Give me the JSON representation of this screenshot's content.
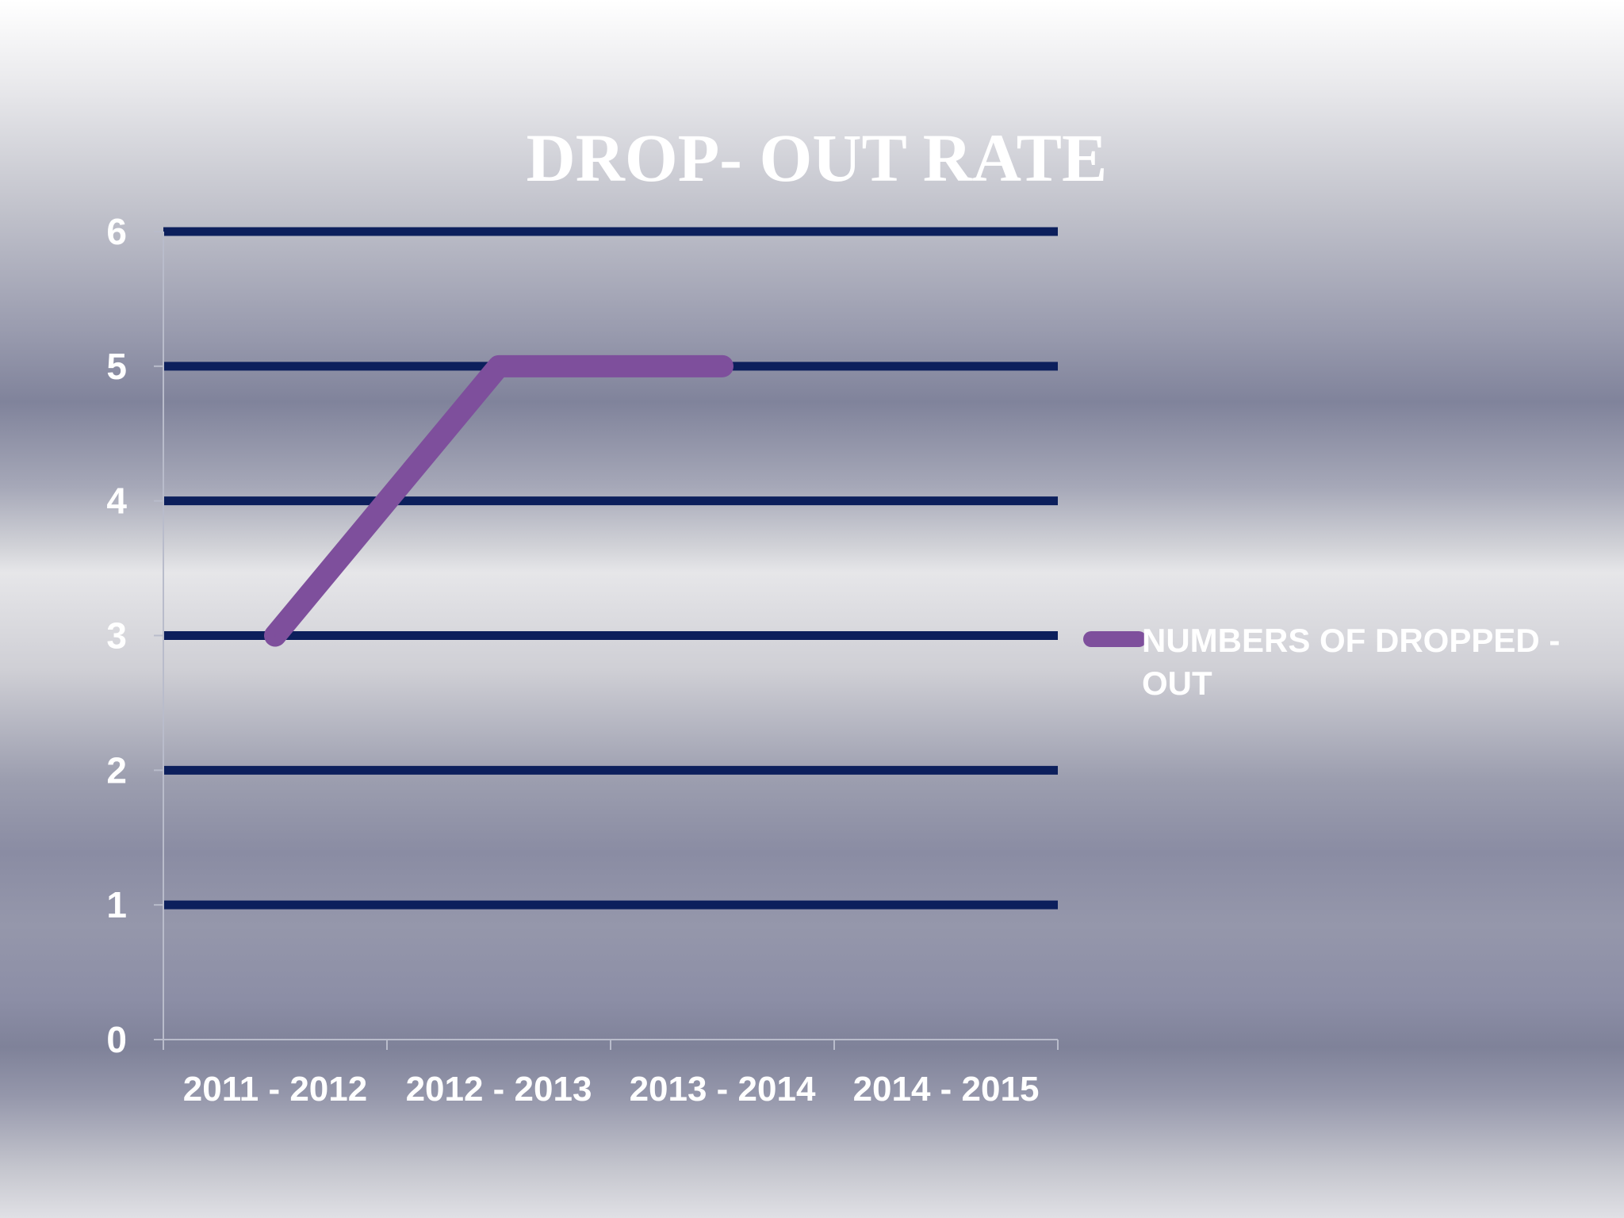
{
  "chart_data": {
    "type": "line",
    "title": "DROP- OUT RATE",
    "categories": [
      "2011 - 2012",
      "2012 - 2013",
      "2013 - 2014",
      "2014 - 2015"
    ],
    "series": [
      {
        "name": "NUMBERS OF DROPPED - OUT",
        "values": [
          3,
          5,
          5,
          null
        ],
        "color": "#7e4f9c"
      }
    ],
    "ylim": [
      0,
      6
    ],
    "yticks": [
      0,
      1,
      2,
      3,
      4,
      5,
      6
    ],
    "grid": true,
    "grid_color": "#0c1f5c",
    "legend_position": "right",
    "legend_lines": [
      "NUMBERS OF DROPPED -",
      "OUT"
    ]
  }
}
